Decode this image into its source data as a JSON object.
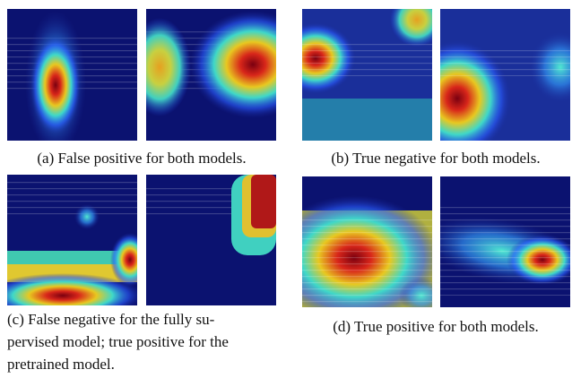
{
  "figure": {
    "panels": [
      {
        "caption": [
          "(a) False positive for both models."
        ]
      },
      {
        "caption": [
          "(b) True negative for both models."
        ]
      },
      {
        "caption": [
          "(c) False negative for the fully su-",
          "pervised model; true positive for the",
          "pretrained model."
        ]
      },
      {
        "caption": [
          "(d) True positive for both models."
        ]
      }
    ]
  }
}
